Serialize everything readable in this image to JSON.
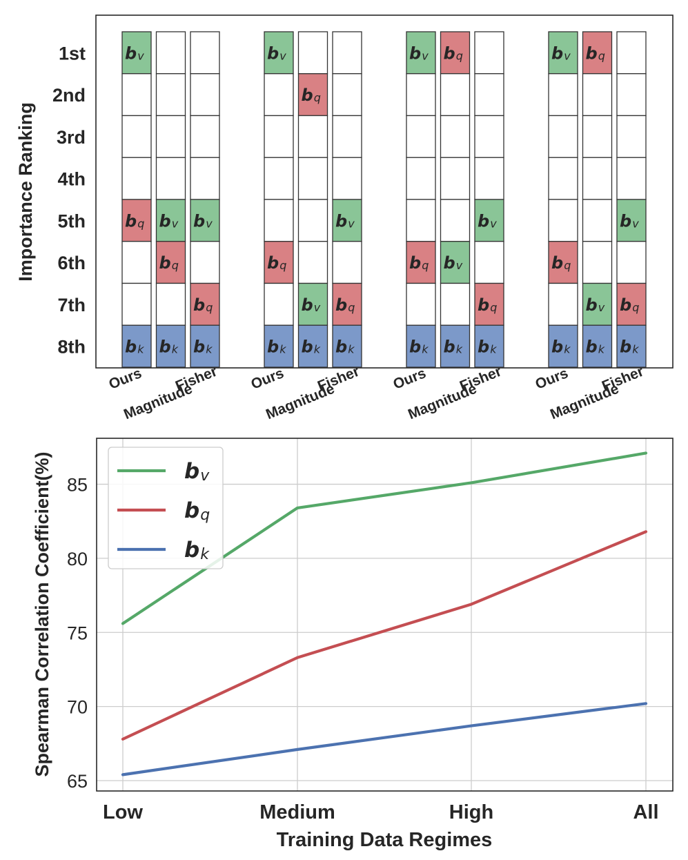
{
  "colors": {
    "green": "#55a868",
    "red": "#c44e52",
    "blue": "#4c72b0",
    "cell_green": "#8ac597",
    "cell_red": "#d98184",
    "cell_blue": "#7c99c9",
    "grid": "#cccccc",
    "frame": "#262626"
  },
  "chart_data": [
    {
      "type": "table",
      "title": "",
      "ylabel": "Importance Ranking",
      "rank_labels": [
        "1st",
        "2nd",
        "3rd",
        "4th",
        "5th",
        "6th",
        "7th",
        "8th"
      ],
      "method_labels": [
        "Ours",
        "Magnitude",
        "Fisher"
      ],
      "parameter_symbols": {
        "v": "b",
        "q": "b",
        "k": "b"
      },
      "groups": [
        {
          "columns": [
            {
              "method": "Ours",
              "v": 1,
              "q": 5,
              "k": 8
            },
            {
              "method": "Magnitude",
              "v": 5,
              "q": 6,
              "k": 8
            },
            {
              "method": "Fisher",
              "v": 5,
              "q": 7,
              "k": 8
            }
          ]
        },
        {
          "columns": [
            {
              "method": "Ours",
              "v": 1,
              "q": 6,
              "k": 8
            },
            {
              "method": "Magnitude",
              "v": 7,
              "q": 2,
              "k": 8
            },
            {
              "method": "Fisher",
              "v": 5,
              "q": 7,
              "k": 8
            }
          ]
        },
        {
          "columns": [
            {
              "method": "Ours",
              "v": 1,
              "q": 6,
              "k": 8
            },
            {
              "method": "Magnitude",
              "v": 6,
              "q": 1,
              "k": 8
            },
            {
              "method": "Fisher",
              "v": 5,
              "q": 7,
              "k": 8
            }
          ]
        },
        {
          "columns": [
            {
              "method": "Ours",
              "v": 1,
              "q": 6,
              "k": 8
            },
            {
              "method": "Magnitude",
              "v": 7,
              "q": 1,
              "k": 8
            },
            {
              "method": "Fisher",
              "v": 5,
              "q": 7,
              "k": 8
            }
          ]
        }
      ]
    },
    {
      "type": "line",
      "title": "",
      "xlabel": "Training Data Regimes",
      "ylabel": "Spearman Correlation Coefficient(%)",
      "categories": [
        "Low",
        "Medium",
        "High",
        "All"
      ],
      "ylim": [
        64.3,
        88.1
      ],
      "yticks": [
        65,
        70,
        75,
        80,
        85
      ],
      "grid": true,
      "legend_position": "top-left",
      "series": [
        {
          "key": "v",
          "name": "b",
          "subscript": "v",
          "values": [
            75.6,
            83.4,
            85.1,
            87.1
          ]
        },
        {
          "key": "q",
          "name": "b",
          "subscript": "q",
          "values": [
            67.8,
            73.3,
            76.9,
            81.8
          ]
        },
        {
          "key": "k",
          "name": "b",
          "subscript": "k",
          "values": [
            65.4,
            67.1,
            68.7,
            70.2
          ]
        }
      ]
    }
  ]
}
